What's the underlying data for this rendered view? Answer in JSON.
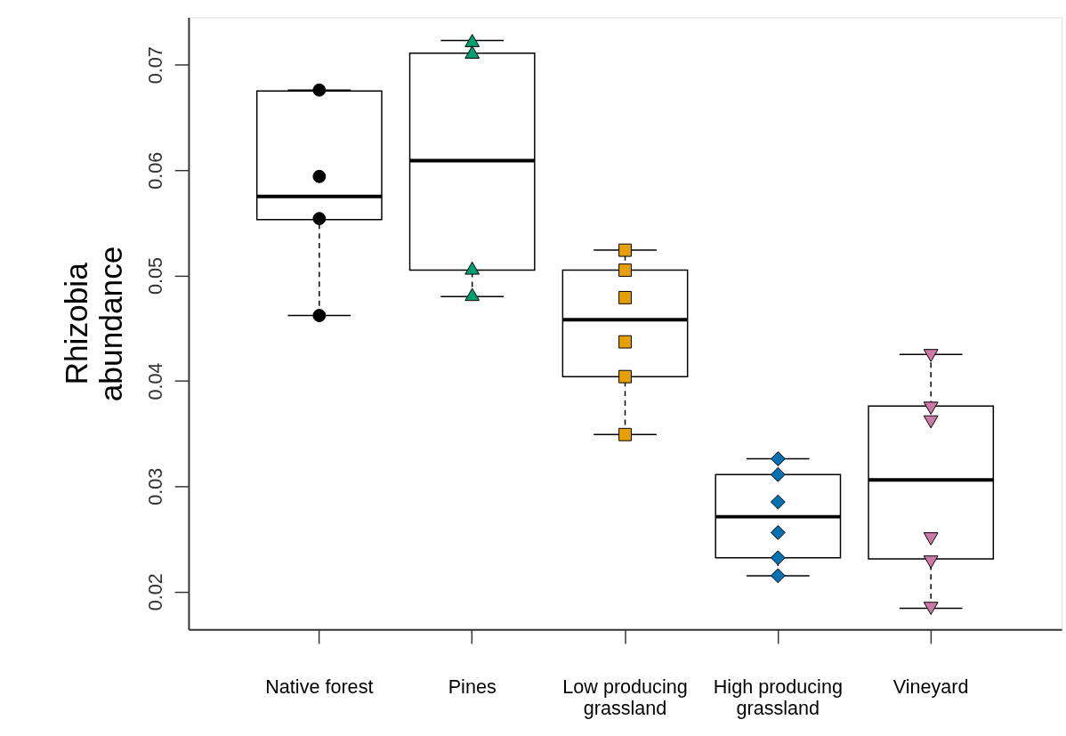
{
  "chart_data": {
    "type": "box",
    "ylabel": "Rhizobia abundance",
    "categories": [
      "Native forest",
      "Pines",
      "Low producing grassland",
      "High producing grassland",
      "Vineyard"
    ],
    "boxes": [
      {
        "low": 0.0462,
        "q1": 0.0553,
        "median": 0.0575,
        "q3": 0.0675,
        "high": 0.0676
      },
      {
        "low": 0.048,
        "q1": 0.0505,
        "median": 0.0609,
        "q3": 0.0711,
        "high": 0.0723
      },
      {
        "low": 0.0349,
        "q1": 0.0404,
        "median": 0.0458,
        "q3": 0.0505,
        "high": 0.0524
      },
      {
        "low": 0.0215,
        "q1": 0.0232,
        "median": 0.0271,
        "q3": 0.0311,
        "high": 0.0326
      },
      {
        "low": 0.0184,
        "q1": 0.0231,
        "median": 0.0306,
        "q3": 0.0376,
        "high": 0.0425
      }
    ],
    "series": [
      {
        "type": "scatter",
        "color": "#000000",
        "marker": "circle",
        "x": [
          "Native forest",
          "Native forest",
          "Native forest",
          "Native forest"
        ],
        "values": [
          0.0676,
          0.0594,
          0.0554,
          0.0462
        ]
      },
      {
        "type": "scatter",
        "color": "#009e73",
        "marker": "triangle",
        "x": [
          "Pines",
          "Pines",
          "Pines",
          "Pines"
        ],
        "values": [
          0.0723,
          0.0712,
          0.0507,
          0.0482
        ]
      },
      {
        "type": "scatter",
        "color": "#e69f00",
        "marker": "square",
        "x": [
          "Low producing grassland",
          "Low producing grassland",
          "Low producing grassland",
          "Low producing grassland",
          "Low producing grassland",
          "Low producing grassland"
        ],
        "values": [
          0.0524,
          0.0505,
          0.0479,
          0.0437,
          0.0404,
          0.0349
        ]
      },
      {
        "type": "scatter",
        "color": "#0072b2",
        "marker": "diamond",
        "x": [
          "High producing grassland",
          "High producing grassland",
          "High producing grassland",
          "High producing grassland",
          "High producing grassland",
          "High producing grassland"
        ],
        "values": [
          0.0326,
          0.0311,
          0.0285,
          0.0256,
          0.0232,
          0.0215
        ]
      },
      {
        "type": "scatter",
        "color": "#cc79a7",
        "marker": "triangle-down",
        "x": [
          "Vineyard",
          "Vineyard",
          "Vineyard",
          "Vineyard",
          "Vineyard",
          "Vineyard"
        ],
        "values": [
          0.0424,
          0.0374,
          0.0361,
          0.025,
          0.0228,
          0.0184
        ]
      }
    ],
    "ylim": [
      0.0164,
      0.0745
    ],
    "yticks": [
      0.02,
      0.03,
      0.04,
      0.05,
      0.06,
      0.07
    ],
    "grid": false
  }
}
